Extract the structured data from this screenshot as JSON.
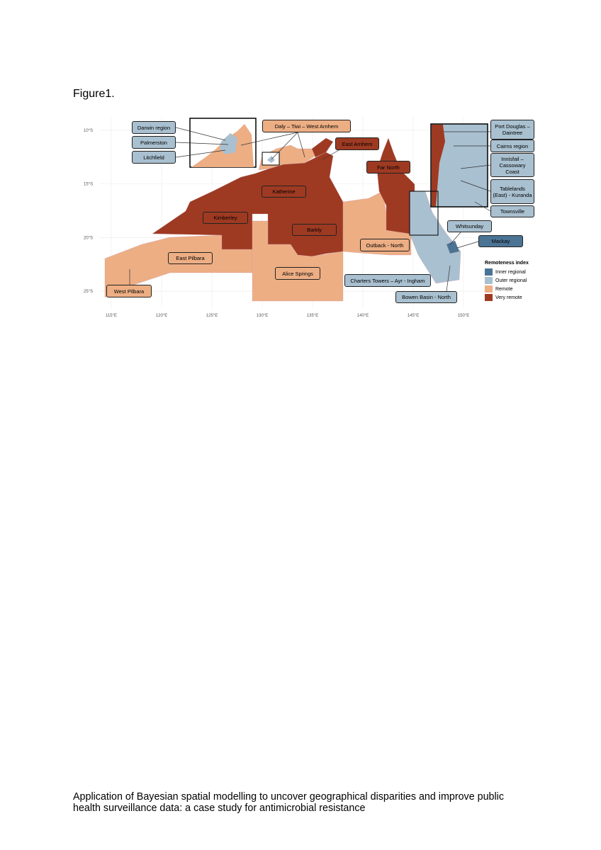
{
  "header": {
    "title": "Figure1."
  },
  "map": {
    "lat_ticks": [
      "10°S",
      "15°S",
      "20°S",
      "25°S"
    ],
    "lon_ticks": [
      "115°E",
      "120°E",
      "125°E",
      "130°E",
      "135°E",
      "140°E",
      "145°E",
      "150°E"
    ],
    "regions": [
      {
        "label": "Darwin region",
        "color": "#a9c0d0"
      },
      {
        "label": "Palmerston",
        "color": "#a9c0d0"
      },
      {
        "label": "Litchfield",
        "color": "#a9c0d0"
      },
      {
        "label": "Daly – Tiwi – West Arnhem",
        "color": "#edae84"
      },
      {
        "label": "East Arnhem",
        "color": "#9e3a22"
      },
      {
        "label": "Far North",
        "color": "#9e3a22"
      },
      {
        "label": "Katherine",
        "color": "#9e3a22"
      },
      {
        "label": "Kimberley",
        "color": "#9e3a22"
      },
      {
        "label": "Barkly",
        "color": "#9e3a22"
      },
      {
        "label": "East Pilbara",
        "color": "#edae84"
      },
      {
        "label": "Alice Springs",
        "color": "#edae84"
      },
      {
        "label": "West Pilbara",
        "color": "#edae84"
      },
      {
        "label": "Outback - North",
        "color": "#edae84"
      },
      {
        "label": "Charters Towers – Ayr - Ingham",
        "color": "#a9c0d0"
      },
      {
        "label": "Bowen Basin - North",
        "color": "#a9c0d0"
      },
      {
        "label": "Whitsunday",
        "color": "#a9c0d0"
      },
      {
        "label": "Mackay",
        "color": "#4a7394"
      },
      {
        "label": "Port Douglas – Daintree",
        "color": "#a9c0d0"
      },
      {
        "label": "Cairns region",
        "color": "#a9c0d0"
      },
      {
        "label": "Innisfail – Cassowary Coast",
        "color": "#a9c0d0"
      },
      {
        "label": "Tablelands (East) - Kuranda",
        "color": "#a9c0d0"
      },
      {
        "label": "Townsville",
        "color": "#a9c0d0"
      }
    ],
    "legend": {
      "title": "Remoteness index",
      "items": [
        {
          "label": "Inner regional",
          "color": "#4a7394"
        },
        {
          "label": "Outer regional",
          "color": "#a9c0d0"
        },
        {
          "label": "Remote",
          "color": "#edae84"
        },
        {
          "label": "Very remote",
          "color": "#9e3a22"
        }
      ]
    }
  },
  "footer": {
    "lines": [
      "Application of Bayesian spatial modelling to uncover geographical disparities and improve public",
      "health surveillance data: a case study for antimicrobial resistance"
    ]
  }
}
